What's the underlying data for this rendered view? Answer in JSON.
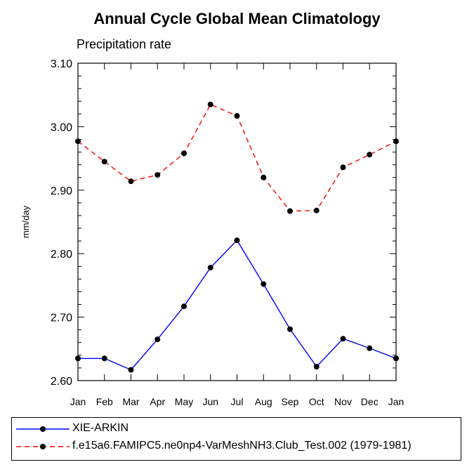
{
  "chart_data": {
    "type": "line",
    "title": "Annual Cycle Global Mean Climatology",
    "subtitle": "Precipitation rate",
    "ylabel": "mm/day",
    "xlabel": "",
    "categories": [
      "Jan",
      "Feb",
      "Mar",
      "Apr",
      "May",
      "Jun",
      "Jul",
      "Aug",
      "Sep",
      "Oct",
      "Nov",
      "Dec",
      "Jan"
    ],
    "ylim": [
      2.6,
      3.1
    ],
    "yticks": [
      "2.60",
      "2.70",
      "2.80",
      "2.90",
      "3.00",
      "3.10"
    ],
    "legend_position": "bottom",
    "series": [
      {
        "name": "XIE-ARKIN",
        "color": "#0000ff",
        "dash": "solid",
        "marker": "filled-circle",
        "values": [
          2.635,
          2.635,
          2.617,
          2.665,
          2.717,
          2.778,
          2.821,
          2.752,
          2.681,
          2.622,
          2.666,
          2.651,
          2.635
        ]
      },
      {
        "name": "f.e15a6.FAMIPC5.ne0np4-VarMeshNH3.Club_Test.002 (1979-1981)",
        "color": "#ff0000",
        "dash": "dashed",
        "marker": "filled-circle",
        "values": [
          2.977,
          2.945,
          2.914,
          2.924,
          2.958,
          3.035,
          3.017,
          2.92,
          2.867,
          2.868,
          2.936,
          2.956,
          2.977
        ]
      }
    ]
  }
}
